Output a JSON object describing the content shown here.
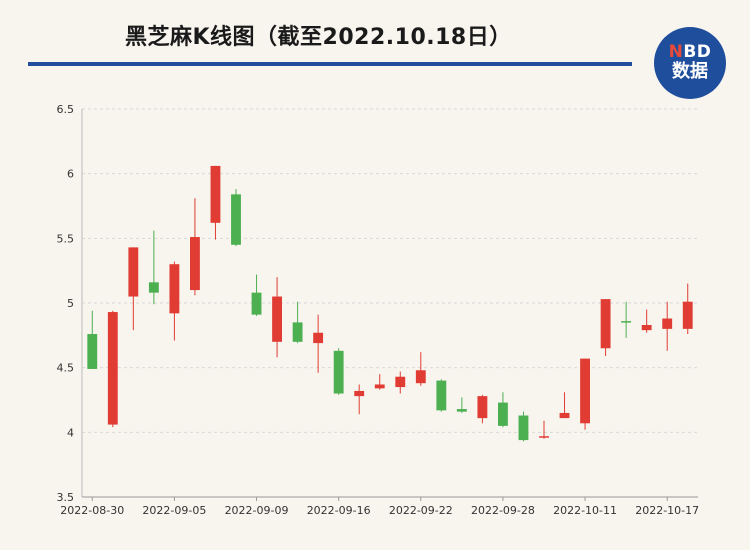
{
  "title": "黑芝麻K线图（截至2022.10.18日）",
  "logo": {
    "line1_prefix": "N",
    "line1_rest": "BD",
    "line2": "数据"
  },
  "colors": {
    "up": "#e03c33",
    "down": "#4caf50",
    "brand": "#1f4e9c",
    "grid": "#d8d8d8"
  },
  "chart_data": {
    "type": "candlestick",
    "ylim": [
      3.5,
      6.5
    ],
    "yticks": [
      3.5,
      4,
      4.5,
      5,
      5.5,
      6,
      6.5
    ],
    "ytick_labels": [
      "3.5",
      "4",
      "4.5",
      "5",
      "5.5",
      "6",
      "6.5"
    ],
    "grid": "horizontal-dashed",
    "xtick_labels": [
      {
        "index": 0,
        "label": "2022-08-30"
      },
      {
        "index": 4,
        "label": "2022-09-05"
      },
      {
        "index": 8,
        "label": "2022-09-09"
      },
      {
        "index": 12,
        "label": "2022-09-16"
      },
      {
        "index": 16,
        "label": "2022-09-22"
      },
      {
        "index": 20,
        "label": "2022-09-28"
      },
      {
        "index": 24,
        "label": "2022-10-11"
      },
      {
        "index": 28,
        "label": "2022-10-17"
      }
    ],
    "candles": [
      {
        "o": 4.76,
        "c": 4.49,
        "h": 4.94,
        "l": 4.49
      },
      {
        "o": 4.06,
        "c": 4.93,
        "h": 4.94,
        "l": 4.04
      },
      {
        "o": 5.05,
        "c": 5.43,
        "h": 5.43,
        "l": 4.79
      },
      {
        "o": 5.16,
        "c": 5.08,
        "h": 5.56,
        "l": 4.99
      },
      {
        "o": 4.92,
        "c": 5.3,
        "h": 5.32,
        "l": 4.71
      },
      {
        "o": 5.1,
        "c": 5.51,
        "h": 5.81,
        "l": 5.06
      },
      {
        "o": 5.62,
        "c": 6.06,
        "h": 6.06,
        "l": 5.49
      },
      {
        "o": 5.84,
        "c": 5.45,
        "h": 5.88,
        "l": 5.44
      },
      {
        "o": 5.08,
        "c": 4.91,
        "h": 5.22,
        "l": 4.9
      },
      {
        "o": 4.7,
        "c": 5.05,
        "h": 5.2,
        "l": 4.58
      },
      {
        "o": 4.85,
        "c": 4.7,
        "h": 5.01,
        "l": 4.69
      },
      {
        "o": 4.69,
        "c": 4.77,
        "h": 4.91,
        "l": 4.46
      },
      {
        "o": 4.63,
        "c": 4.3,
        "h": 4.65,
        "l": 4.29
      },
      {
        "o": 4.28,
        "c": 4.32,
        "h": 4.37,
        "l": 4.14
      },
      {
        "o": 4.34,
        "c": 4.37,
        "h": 4.45,
        "l": 4.33
      },
      {
        "o": 4.35,
        "c": 4.43,
        "h": 4.47,
        "l": 4.3
      },
      {
        "o": 4.38,
        "c": 4.48,
        "h": 4.62,
        "l": 4.36
      },
      {
        "o": 4.4,
        "c": 4.17,
        "h": 4.41,
        "l": 4.16
      },
      {
        "o": 4.18,
        "c": 4.16,
        "h": 4.27,
        "l": 4.15
      },
      {
        "o": 4.11,
        "c": 4.28,
        "h": 4.29,
        "l": 4.07
      },
      {
        "o": 4.23,
        "c": 4.05,
        "h": 4.31,
        "l": 4.04
      },
      {
        "o": 4.13,
        "c": 3.94,
        "h": 4.16,
        "l": 3.93
      },
      {
        "o": 3.96,
        "c": 3.97,
        "h": 4.09,
        "l": 3.95
      },
      {
        "o": 4.11,
        "c": 4.15,
        "h": 4.31,
        "l": 4.11
      },
      {
        "o": 4.07,
        "c": 4.57,
        "h": 4.57,
        "l": 4.02
      },
      {
        "o": 4.65,
        "c": 5.03,
        "h": 5.03,
        "l": 4.59
      },
      {
        "o": 4.86,
        "c": 4.85,
        "h": 5.01,
        "l": 4.73
      },
      {
        "o": 4.79,
        "c": 4.83,
        "h": 4.95,
        "l": 4.77
      },
      {
        "o": 4.8,
        "c": 4.88,
        "h": 5.01,
        "l": 4.63
      },
      {
        "o": 4.8,
        "c": 5.01,
        "h": 5.15,
        "l": 4.76
      }
    ]
  }
}
